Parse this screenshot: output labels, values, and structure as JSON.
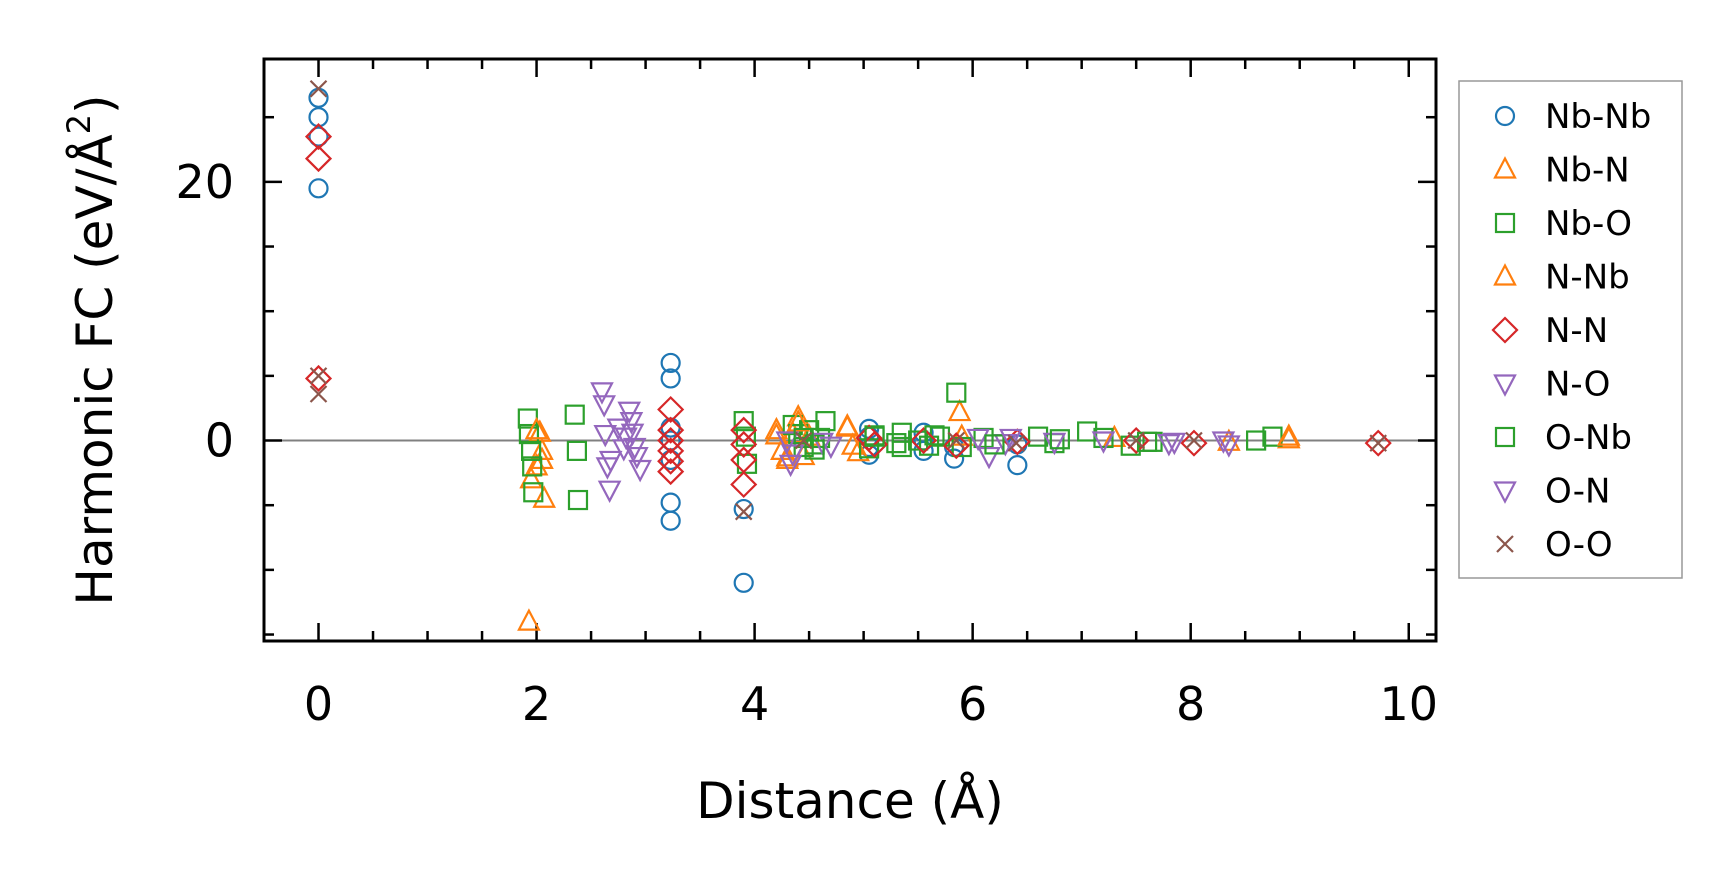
{
  "chart_data": {
    "type": "scatter",
    "xlabel": "Distance (Å)",
    "ylabel_main": "Harmonic FC (eV/Å",
    "ylabel_sup": "2",
    "ylabel_close": ")",
    "xlim": [
      -0.5,
      10.25
    ],
    "ylim": [
      -15.5,
      29.5
    ],
    "x_major_ticks": [
      0,
      2,
      4,
      6,
      8,
      10
    ],
    "x_tick_labels": [
      "0",
      "2",
      "4",
      "6",
      "8",
      "10"
    ],
    "x_minor_step": 0.5,
    "y_major_ticks": [
      0,
      20
    ],
    "y_tick_labels": [
      "0",
      "20"
    ],
    "y_minor_step": 5,
    "zero_line": true,
    "grid": false,
    "legend_position": "outside-right",
    "series": [
      {
        "name": "Nb-Nb",
        "marker": "circle",
        "color": "#1f77b4",
        "x": [
          0.0,
          0.0,
          0.0,
          0.0,
          3.23,
          3.23,
          3.23,
          3.23,
          3.23,
          3.23,
          3.23,
          3.9,
          3.9,
          5.05,
          5.05,
          5.05,
          5.05,
          5.55,
          5.55,
          5.55,
          5.83,
          5.83,
          6.41,
          6.41
        ],
        "y": [
          26.5,
          25.0,
          23.5,
          19.5,
          6.0,
          4.8,
          1.0,
          0.0,
          -1.5,
          -4.8,
          -6.2,
          -5.3,
          -11.0,
          0.9,
          0.3,
          -0.5,
          -1.1,
          0.6,
          0.0,
          -0.8,
          -0.5,
          -1.4,
          -0.3,
          -1.9
        ]
      },
      {
        "name": "Nb-N",
        "marker": "triangle-up",
        "color": "#ff7f0e",
        "x": [
          1.93,
          1.95,
          2.0,
          2.03,
          2.05,
          2.05,
          2.07,
          4.2,
          4.25,
          4.3,
          4.35,
          4.4,
          4.45,
          4.5,
          4.85,
          4.9,
          4.95,
          5.88,
          5.9,
          7.3,
          8.35,
          8.9
        ],
        "y": [
          -14.0,
          -3.0,
          -2.0,
          0.6,
          -0.8,
          -1.5,
          -4.5,
          0.8,
          -0.8,
          -1.5,
          0.5,
          1.8,
          -1.2,
          0.3,
          1.0,
          -0.4,
          -0.9,
          2.2,
          0.3,
          0.2,
          -0.1,
          0.1
        ]
      },
      {
        "name": "Nb-O",
        "marker": "square",
        "color": "#2ca02c",
        "x": [
          1.92,
          1.93,
          1.95,
          1.96,
          1.97,
          2.35,
          2.37,
          2.38,
          3.9,
          3.92,
          3.93,
          4.35,
          4.4,
          4.45,
          4.5,
          4.55,
          4.6,
          4.65,
          5.05,
          5.1,
          5.3,
          5.35,
          5.5,
          5.6,
          5.7,
          5.85,
          5.9,
          6.1,
          6.6,
          6.75,
          7.05,
          7.2,
          7.45,
          7.65,
          8.6,
          8.75
        ],
        "y": [
          1.7,
          0.5,
          -0.8,
          -2.0,
          -4.0,
          2.0,
          -0.8,
          -4.6,
          1.5,
          0.3,
          -1.8,
          1.2,
          0.5,
          -0.5,
          0.8,
          -0.3,
          0.2,
          1.5,
          -0.6,
          0.4,
          -0.2,
          0.6,
          0.0,
          -0.4,
          0.3,
          3.7,
          -0.5,
          0.2,
          0.3,
          -0.2,
          0.7,
          0.2,
          -0.4,
          -0.1,
          0.0,
          0.3
        ]
      },
      {
        "name": "N-Nb",
        "marker": "triangle-up",
        "color": "#ff7f0e",
        "x": [
          2.0,
          4.2,
          4.3,
          4.4,
          4.85,
          8.9
        ],
        "y": [
          0.8,
          0.4,
          -1.3,
          1.4,
          1.1,
          0.3
        ]
      },
      {
        "name": "N-N",
        "marker": "diamond",
        "color": "#d62728",
        "x": [
          0.0,
          0.0,
          0.0,
          3.23,
          3.23,
          3.23,
          3.23,
          3.23,
          3.23,
          3.9,
          3.9,
          3.9,
          3.9,
          5.05,
          5.1,
          5.55,
          5.85,
          6.41,
          7.5,
          8.03,
          9.72
        ],
        "y": [
          23.5,
          21.8,
          4.8,
          2.4,
          0.8,
          0.0,
          -0.8,
          -1.6,
          -2.4,
          0.8,
          -0.3,
          -1.5,
          -3.4,
          0.2,
          -0.3,
          0.0,
          -0.4,
          -0.1,
          0.0,
          -0.2,
          -0.2
        ]
      },
      {
        "name": "N-O",
        "marker": "triangle-down",
        "color": "#9467bd",
        "x": [
          2.6,
          2.62,
          2.63,
          2.65,
          2.67,
          2.68,
          2.85,
          2.87,
          2.88,
          2.9,
          2.92,
          2.95,
          4.3,
          4.33,
          4.62,
          4.7,
          6.05,
          6.15,
          6.3,
          6.75,
          7.2,
          7.8,
          8.35
        ],
        "y": [
          3.8,
          2.8,
          0.5,
          -2.0,
          -3.8,
          -1.5,
          2.3,
          1.5,
          0.6,
          -0.5,
          -1.2,
          -2.2,
          0.0,
          -1.8,
          -0.1,
          -0.4,
          0.2,
          -1.2,
          -0.2,
          -0.1,
          0.0,
          -0.2,
          -0.3
        ]
      },
      {
        "name": "O-Nb",
        "marker": "square",
        "color": "#2ca02c",
        "x": [
          4.45,
          4.55,
          5.1,
          5.35,
          5.65,
          6.2,
          6.8,
          7.6
        ],
        "y": [
          0.2,
          -0.7,
          0.3,
          -0.5,
          0.4,
          -0.3,
          0.1,
          -0.1
        ]
      },
      {
        "name": "O-N",
        "marker": "triangle-down",
        "color": "#9467bd",
        "x": [
          2.75,
          2.8,
          2.82,
          4.35,
          6.35,
          7.85,
          8.3
        ],
        "y": [
          1.0,
          -0.6,
          0.3,
          -1.0,
          0.2,
          -0.1,
          0.0
        ]
      },
      {
        "name": "O-O",
        "marker": "x",
        "color": "#8c564b",
        "x": [
          0.0,
          0.0,
          0.0,
          3.9,
          4.45,
          5.85,
          6.4,
          7.5,
          8.03,
          9.72
        ],
        "y": [
          27.2,
          5.0,
          3.6,
          -5.5,
          0.0,
          0.0,
          -0.2,
          0.0,
          0.0,
          -0.2
        ]
      }
    ]
  }
}
